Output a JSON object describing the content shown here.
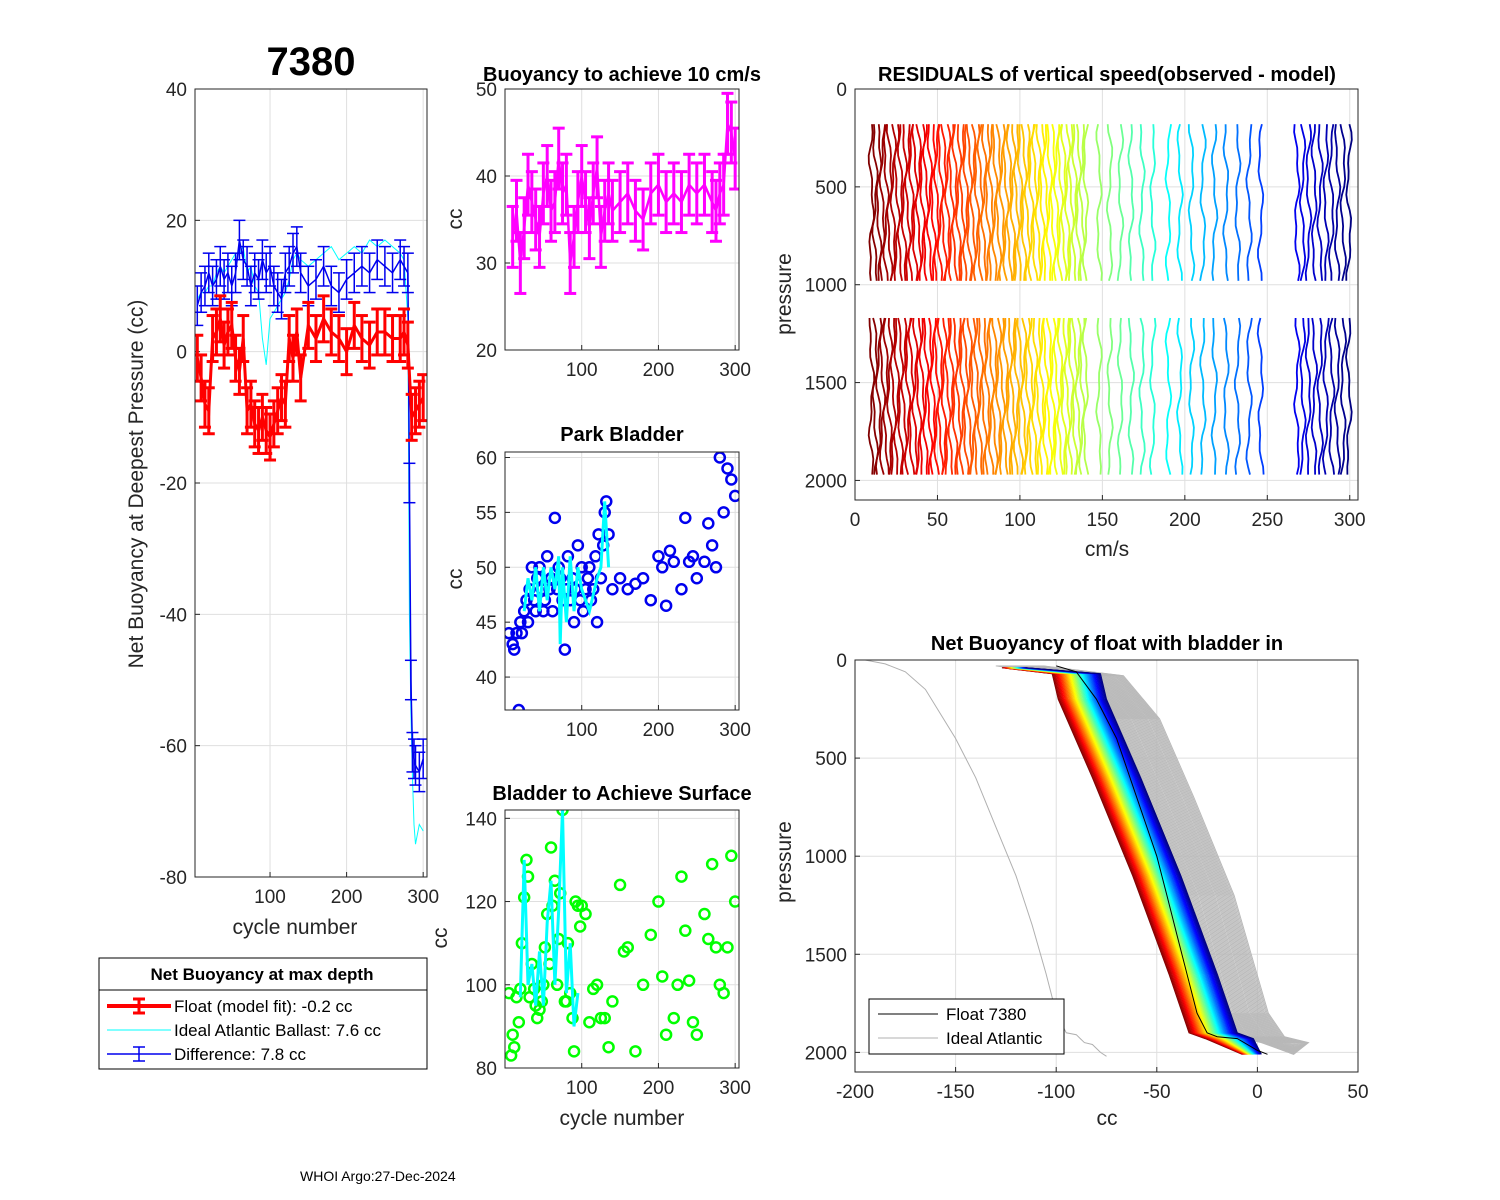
{
  "figure": {
    "float_id": "7380",
    "footer": "WHOI Argo:27-Dec-2024",
    "colors": {
      "red": "#ff0000",
      "blue": "#0000ee",
      "cyan": "#00ffff",
      "magenta": "#ff00ff",
      "green": "#00ff00",
      "gray": "#b0b0b0",
      "black": "#000000"
    }
  },
  "chart_data": [
    {
      "id": "net_buoyancy",
      "type": "line",
      "title": "7380",
      "xlabel": "cycle number",
      "ylabel": "Net Buoyancy at Deepest Pressure (cc)",
      "xlim": [
        2,
        305
      ],
      "ylim": [
        -80,
        40
      ],
      "xticks": [
        100,
        200,
        300
      ],
      "yticks": [
        -80,
        -60,
        -40,
        -20,
        0,
        20,
        40
      ],
      "series": [
        {
          "name": "Float (model fit)",
          "color": "#ff0000",
          "x": [
            5,
            10,
            15,
            20,
            25,
            30,
            35,
            40,
            45,
            50,
            55,
            60,
            65,
            70,
            75,
            80,
            85,
            90,
            95,
            100,
            105,
            110,
            115,
            120,
            125,
            130,
            135,
            140,
            150,
            160,
            170,
            180,
            190,
            200,
            210,
            220,
            230,
            240,
            250,
            260,
            270,
            275,
            280,
            285,
            290,
            295,
            300
          ],
          "y": [
            -1,
            -4,
            -8,
            -9,
            2,
            3,
            5,
            1,
            3,
            4,
            -1,
            -3,
            2,
            -9,
            -8,
            -11,
            -12,
            -10,
            -12,
            -13,
            -11,
            -9,
            -7,
            -8,
            2,
            -1,
            3,
            -4,
            4,
            2,
            5,
            3,
            2,
            0,
            4,
            2,
            1,
            3,
            3,
            2,
            2,
            3,
            1,
            -10,
            -9,
            -8,
            -7
          ],
          "err": 3.5
        },
        {
          "name": "Ideal Atlantic Ballast",
          "color": "#00ffff",
          "x": [
            5,
            10,
            15,
            20,
            25,
            30,
            35,
            40,
            45,
            50,
            55,
            60,
            65,
            70,
            75,
            80,
            85,
            90,
            95,
            100,
            105,
            110,
            115,
            120,
            125,
            130,
            135,
            140,
            150,
            160,
            170,
            180,
            190,
            200,
            210,
            220,
            230,
            240,
            250,
            260,
            270,
            275,
            280,
            282,
            284,
            286,
            288,
            290,
            295,
            300
          ],
          "y": [
            8,
            9,
            9,
            10,
            10,
            12,
            13,
            12,
            13,
            14,
            15,
            15,
            16,
            12,
            13,
            10,
            9,
            2,
            -2,
            5,
            6,
            7,
            8,
            9,
            11,
            14,
            15,
            14,
            13,
            14,
            15,
            16,
            14,
            15,
            16,
            15,
            17,
            16,
            17,
            16,
            15,
            14,
            5,
            -40,
            -55,
            -65,
            -72,
            -75,
            -72,
            -73
          ]
        },
        {
          "name": "Difference",
          "color": "#0000ee",
          "x": [
            5,
            10,
            15,
            20,
            25,
            30,
            35,
            40,
            45,
            50,
            55,
            60,
            65,
            70,
            75,
            80,
            85,
            90,
            95,
            100,
            105,
            110,
            115,
            120,
            125,
            130,
            135,
            140,
            150,
            160,
            170,
            180,
            190,
            200,
            210,
            220,
            230,
            240,
            250,
            260,
            270,
            275,
            280,
            282,
            284,
            286,
            288,
            290,
            295,
            300
          ],
          "y": [
            7,
            9,
            10,
            12,
            10,
            11,
            13,
            11,
            12,
            10,
            12,
            17,
            14,
            13,
            10,
            12,
            11,
            14,
            12,
            13,
            10,
            9,
            8,
            12,
            13,
            15,
            16,
            12,
            10,
            11,
            13,
            10,
            9,
            11,
            12,
            13,
            12,
            14,
            13,
            12,
            14,
            13,
            12,
            -20,
            -50,
            -61,
            -62,
            -63,
            -64,
            -62
          ],
          "err": 3
        }
      ],
      "legend": {
        "title": "Net Buoyancy at max depth",
        "entries": [
          "Float (model fit):  -0.2 cc",
          "Ideal Atlantic Ballast:   7.6 cc",
          "Difference:   7.8 cc"
        ]
      }
    },
    {
      "id": "buoyancy_10cms",
      "type": "scatter",
      "title": "Buoyancy to achieve 10 cm/s",
      "xlabel": "",
      "ylabel": "cc",
      "xlim": [
        0,
        305
      ],
      "ylim": [
        20,
        50
      ],
      "xticks": [
        100,
        200,
        300
      ],
      "yticks": [
        20,
        30,
        40,
        50
      ],
      "series": [
        {
          "name": "buoyancy",
          "color": "#ff00ff",
          "x": [
            10,
            15,
            20,
            25,
            30,
            35,
            40,
            45,
            50,
            55,
            60,
            65,
            70,
            75,
            80,
            85,
            90,
            95,
            100,
            105,
            110,
            115,
            120,
            125,
            130,
            135,
            140,
            150,
            160,
            170,
            180,
            190,
            200,
            210,
            220,
            230,
            240,
            250,
            260,
            270,
            275,
            280,
            285,
            290,
            295,
            300
          ],
          "y": [
            33,
            36,
            30,
            34,
            39,
            37,
            35,
            33,
            38,
            40,
            36,
            37,
            42,
            38,
            39,
            30,
            33,
            37,
            40,
            37,
            34,
            38,
            41,
            33,
            36,
            38,
            36,
            37,
            38,
            36,
            35,
            38,
            39,
            37,
            38,
            37,
            39,
            38,
            39,
            37,
            36,
            38,
            39,
            46,
            45,
            42
          ],
          "err": 3.5
        }
      ]
    },
    {
      "id": "park_bladder",
      "type": "scatter",
      "title": "Park Bladder",
      "xlabel": "",
      "ylabel": "cc",
      "xlim": [
        0,
        305
      ],
      "ylim": [
        37,
        60.5
      ],
      "xticks": [
        100,
        200,
        300
      ],
      "yticks": [
        40,
        45,
        50,
        55,
        60
      ],
      "series": [
        {
          "name": "park bladder",
          "color": "#0000ee",
          "x": [
            5,
            10,
            12,
            15,
            18,
            20,
            22,
            25,
            28,
            30,
            32,
            35,
            38,
            40,
            42,
            45,
            48,
            50,
            52,
            55,
            58,
            60,
            62,
            65,
            68,
            70,
            72,
            75,
            78,
            80,
            82,
            85,
            88,
            90,
            92,
            95,
            98,
            100,
            102,
            105,
            108,
            110,
            112,
            115,
            118,
            120,
            122,
            125,
            128,
            130,
            132,
            135,
            140,
            150,
            160,
            170,
            180,
            190,
            200,
            205,
            210,
            215,
            220,
            230,
            235,
            240,
            245,
            250,
            260,
            265,
            270,
            275,
            280,
            285,
            290,
            295,
            300
          ],
          "y": [
            44,
            43,
            42.5,
            44,
            37,
            45,
            44,
            46,
            47,
            45,
            48,
            50,
            47,
            46,
            49,
            50,
            48,
            46,
            47,
            51,
            48,
            49,
            46,
            54.5,
            48,
            50,
            49,
            47,
            42.5,
            48,
            51,
            47,
            49,
            45,
            48,
            52,
            47,
            50,
            46,
            48,
            49,
            50,
            47,
            48,
            51,
            45,
            53,
            49,
            52,
            55,
            56,
            53,
            48,
            49,
            48,
            48.5,
            49,
            47,
            51,
            50,
            46.5,
            51.5,
            50.5,
            48,
            54.5,
            50.5,
            51,
            49,
            50.5,
            54,
            52,
            50,
            60,
            55,
            59,
            58,
            56.5
          ]
        },
        {
          "name": "park bladder (connected)",
          "color": "#00ffff",
          "x": [
            25,
            30,
            35,
            40,
            45,
            50,
            55,
            60,
            65,
            70,
            72,
            75,
            80,
            85,
            90,
            95,
            100,
            110,
            120,
            125,
            130,
            135
          ],
          "y": [
            46,
            49,
            47,
            50,
            46,
            50,
            47,
            50,
            48,
            51,
            43,
            50,
            45,
            51,
            46,
            50,
            48,
            46,
            49,
            50,
            56,
            50
          ]
        }
      ]
    },
    {
      "id": "bladder_surface",
      "type": "scatter",
      "title": "Bladder to Achieve Surface",
      "xlabel": "cycle number",
      "ylabel": "cc",
      "xlim": [
        0,
        305
      ],
      "ylim": [
        80,
        142
      ],
      "xticks": [
        100,
        200,
        300
      ],
      "yticks": [
        80,
        100,
        120,
        140
      ],
      "series": [
        {
          "name": "surface bladder",
          "color": "#00ff00",
          "x": [
            5,
            8,
            10,
            12,
            15,
            18,
            20,
            22,
            25,
            28,
            30,
            32,
            35,
            38,
            40,
            42,
            45,
            48,
            50,
            52,
            55,
            58,
            60,
            62,
            65,
            68,
            70,
            72,
            75,
            78,
            80,
            82,
            85,
            88,
            90,
            92,
            95,
            98,
            100,
            105,
            110,
            115,
            120,
            125,
            130,
            135,
            140,
            150,
            155,
            160,
            170,
            180,
            190,
            200,
            205,
            210,
            220,
            225,
            230,
            235,
            240,
            245,
            250,
            260,
            265,
            270,
            275,
            280,
            285,
            290,
            295,
            300
          ],
          "y": [
            98,
            83,
            88,
            85,
            97,
            91,
            99,
            110,
            121,
            130,
            126,
            97,
            105,
            99,
            95,
            92,
            94,
            96,
            100,
            109,
            117,
            105,
            133,
            119,
            125,
            100,
            111,
            122,
            142,
            96,
            96,
            110,
            98,
            92,
            84,
            120,
            119,
            114,
            119,
            117,
            91,
            99,
            100,
            92,
            92,
            85,
            96,
            124,
            108,
            109,
            84,
            100,
            112,
            120,
            102,
            88,
            92,
            100,
            126,
            113,
            101,
            91,
            88,
            117,
            111,
            129,
            109,
            100,
            98,
            109,
            131,
            120
          ]
        },
        {
          "name": "surface bladder (connected)",
          "color": "#00ffff",
          "x": [
            20,
            25,
            30,
            35,
            40,
            45,
            50,
            55,
            60,
            65,
            70,
            75,
            80,
            85,
            90,
            95
          ],
          "y": [
            97,
            130,
            100,
            105,
            95,
            108,
            95,
            115,
            125,
            100,
            118,
            142,
            98,
            110,
            90,
            98
          ]
        }
      ]
    },
    {
      "id": "residuals",
      "type": "line",
      "title": "RESIDUALS of vertical speed(observed - model)",
      "xlabel": "cm/s",
      "ylabel": "pressure",
      "xlim": [
        0,
        305
      ],
      "ylim": [
        2100,
        0
      ],
      "xticks": [
        0,
        50,
        100,
        150,
        200,
        250,
        300
      ],
      "yticks": [
        0,
        500,
        1000,
        1500,
        2000
      ],
      "segments": [
        [
          180,
          1010
        ],
        [
          1170,
          1990
        ]
      ]
    },
    {
      "id": "net_buoyancy_profile",
      "type": "line",
      "title": "Net Buoyancy of float with bladder in",
      "xlabel": "cc",
      "ylabel": "pressure",
      "xlim": [
        -200,
        50
      ],
      "ylim": [
        2100,
        0
      ],
      "xticks": [
        -200,
        -150,
        -100,
        -50,
        0,
        50
      ],
      "yticks": [
        0,
        500,
        1000,
        1500,
        2000
      ],
      "series": [
        {
          "name": "Ideal Atlantic",
          "color": "#b0b0b0",
          "x": [
            -195,
            -185,
            -175,
            -165,
            -150,
            -140,
            -130,
            -120,
            -112,
            -105,
            -100,
            -95,
            -90,
            -88,
            -86,
            -82,
            -78,
            -75
          ],
          "y": [
            0,
            20,
            60,
            150,
            400,
            600,
            850,
            1100,
            1350,
            1600,
            1800,
            1900,
            1910,
            1930,
            1950,
            1960,
            2000,
            2020
          ]
        },
        {
          "name": "Float 7380",
          "color": "#000000",
          "x": [
            -100,
            -90,
            -80,
            -70,
            -60,
            -50,
            -45,
            -40,
            -30,
            -25,
            -20,
            -10,
            0,
            5
          ],
          "y": [
            30,
            60,
            200,
            400,
            700,
            1000,
            1200,
            1400,
            1800,
            1900,
            1920,
            1930,
            1990,
            2010
          ]
        }
      ],
      "legend": {
        "entries": [
          "Float 7380",
          "Ideal Atlantic"
        ]
      }
    }
  ]
}
